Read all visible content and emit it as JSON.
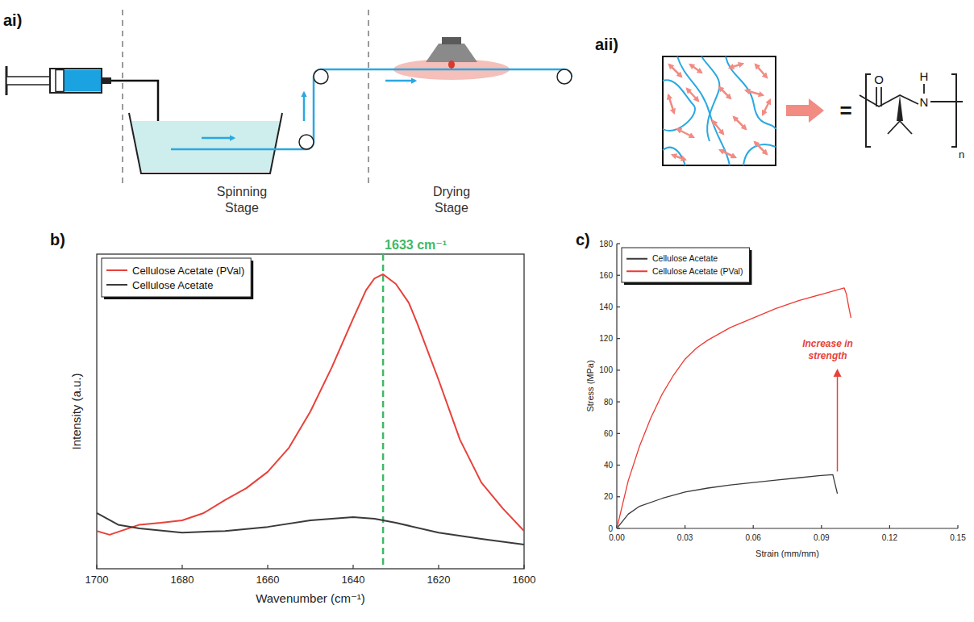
{
  "panel_labels": {
    "ai": "ai)",
    "aii": "aii)",
    "b": "b)",
    "c": "c)"
  },
  "diagram": {
    "stages": [
      "Spinning Stage",
      "Drying Stage"
    ],
    "structure": {
      "equals": "=",
      "atoms": [
        "O",
        "H",
        "N"
      ],
      "repeat": "n"
    }
  },
  "chart_data": [
    {
      "type": "line",
      "x_label": "Wavenumber (cm⁻¹)",
      "y_label": "Intensity (a.u.)",
      "xlim": [
        1700,
        1600
      ],
      "ylim": [
        0,
        100
      ],
      "xticks": [
        1700,
        1680,
        1660,
        1640,
        1620,
        1600
      ],
      "tick_labels": "x",
      "legend": "top-left",
      "series": [
        {
          "name": "Cellulose Acetate (PVal)",
          "color": "#e8413a",
          "x": [
            1700,
            1697,
            1690,
            1685,
            1680,
            1675,
            1670,
            1665,
            1660,
            1655,
            1650,
            1645,
            1640,
            1637,
            1635,
            1633,
            1630,
            1627,
            1625,
            1620,
            1615,
            1610,
            1605,
            1600
          ],
          "values": [
            12,
            10.8,
            14,
            14.6,
            15.4,
            17.7,
            21.8,
            25.6,
            30.8,
            38.5,
            50,
            64,
            79.5,
            88.5,
            92.3,
            93.6,
            90.5,
            84.6,
            78,
            60,
            41,
            27.4,
            19.2,
            12
          ]
        },
        {
          "name": "Cellulose Acetate",
          "color": "#3a3a3a",
          "x": [
            1700,
            1695,
            1690,
            1680,
            1670,
            1660,
            1650,
            1640,
            1635,
            1630,
            1620,
            1610,
            1600
          ],
          "values": [
            17.7,
            14,
            12.8,
            11.5,
            12,
            13.3,
            15.4,
            16.4,
            15.9,
            14.6,
            11.5,
            9.5,
            7.7
          ]
        }
      ],
      "annotations": [
        {
          "text": "1633 cm⁻¹",
          "x": 1633,
          "color": "#3fb866",
          "line_style": "dashed"
        }
      ]
    },
    {
      "type": "line",
      "x_label": "Strain (mm/mm)",
      "y_label": "Stress (MPa)",
      "xlim": [
        0,
        0.15
      ],
      "ylim": [
        0,
        180
      ],
      "xticks": [
        {
          "value": 0,
          "label": "0.00"
        },
        {
          "value": 0.03,
          "label": "0.03"
        },
        {
          "value": 0.06,
          "label": "0.06"
        },
        {
          "value": 0.09,
          "label": "0.09"
        },
        {
          "value": 0.12,
          "label": "0.12"
        },
        {
          "value": 0.15,
          "label": "0.15"
        }
      ],
      "yticks": [
        0,
        20,
        40,
        60,
        80,
        100,
        120,
        140,
        160,
        180
      ],
      "legend": "top-left",
      "series": [
        {
          "name": "Cellulose Acetate",
          "color": "#3a3a3a",
          "x": [
            0,
            0.005,
            0.01,
            0.02,
            0.03,
            0.04,
            0.05,
            0.06,
            0.07,
            0.08,
            0.09,
            0.095,
            0.096,
            0.097
          ],
          "values": [
            0,
            9,
            14,
            19,
            23,
            25.5,
            27.5,
            29,
            30.5,
            32,
            33.5,
            34,
            28,
            22
          ]
        },
        {
          "name": "Cellulose Acetate (PVal)",
          "color": "#ee3a32",
          "x": [
            0,
            0.005,
            0.01,
            0.015,
            0.02,
            0.025,
            0.03,
            0.035,
            0.04,
            0.05,
            0.06,
            0.07,
            0.08,
            0.09,
            0.095,
            0.1,
            0.101,
            0.102,
            0.103
          ],
          "values": [
            0,
            30,
            52,
            70,
            85,
            97,
            107,
            114,
            119,
            127,
            133,
            139,
            144,
            148,
            150,
            152,
            148,
            140,
            133
          ]
        }
      ],
      "annotations": [
        {
          "text": "Increase in strength",
          "x": 0.097,
          "y_from": 36,
          "y_to": 101,
          "color": "#e8413a"
        }
      ]
    }
  ]
}
